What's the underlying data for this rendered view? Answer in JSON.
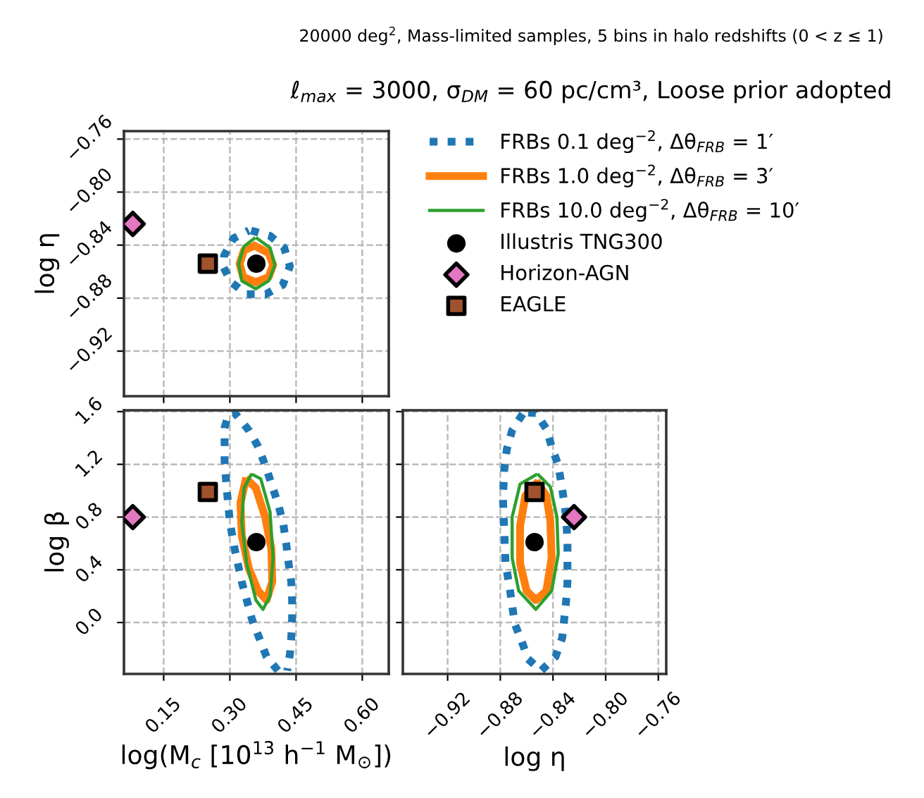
{
  "chart_data": [
    {
      "type": "line",
      "subtitle": "20000 deg$^{2}$, Mass-limited samples, 5 bins in halo redshifts (0 < z ≤ 1)",
      "title": "ℓ$_{max}$ = 3000, σ$_{DM}$ = 60 pc/cm³, Loose prior adopted",
      "ylabel": "log η",
      "xlim": [
        0.06,
        0.66
      ],
      "ylim": [
        -0.954,
        -0.754
      ],
      "xticks": [
        {
          "value": 0.15,
          "label": null
        },
        {
          "value": 0.3,
          "label": null
        },
        {
          "value": 0.45,
          "label": null
        },
        {
          "value": 0.6,
          "label": null
        }
      ],
      "yticks": [
        {
          "value": -0.92,
          "label": "−0.92"
        },
        {
          "value": -0.88,
          "label": "−0.88"
        },
        {
          "value": -0.84,
          "label": "−0.84"
        },
        {
          "value": -0.8,
          "label": "−0.80"
        },
        {
          "value": -0.76,
          "label": "−0.76"
        }
      ],
      "tick_labels": "y",
      "grid": true,
      "legend": "right",
      "series": [
        {
          "name": "FRBs 0.1 deg$^{−2}$, Δθ$_{FRB}$ = 1′",
          "color": "#1f77b4",
          "line_style": "dotted",
          "x": [
            0.348,
            0.391,
            0.423,
            0.436,
            0.42,
            0.382,
            0.338,
            0.303,
            0.286,
            0.287,
            0.308,
            0.343
          ],
          "values": [
            -0.829,
            -0.833,
            -0.842,
            -0.856,
            -0.87,
            -0.877,
            -0.877,
            -0.868,
            -0.857,
            -0.848,
            -0.835,
            -0.829
          ]
        },
        {
          "name": "FRBs 1.0 deg$^{−2}$, Δθ$_{FRB}$ = 3′",
          "color": "#ff7f0e",
          "line_style": "solid",
          "x": [
            0.359,
            0.388,
            0.398,
            0.388,
            0.359,
            0.33,
            0.322,
            0.332,
            0.352
          ],
          "values": [
            -0.841,
            -0.846,
            -0.855,
            -0.864,
            -0.868,
            -0.864,
            -0.854,
            -0.844,
            -0.841
          ]
        },
        {
          "name": "FRBs 10.0 deg$^{−2}$, Δθ$_{FRB}$ = 10′",
          "color": "#2ca02c",
          "line_style": "solid",
          "x": [
            0.362,
            0.391,
            0.402,
            0.388,
            0.359,
            0.327,
            0.32,
            0.332,
            0.355
          ],
          "values": [
            -0.835,
            -0.842,
            -0.855,
            -0.867,
            -0.873,
            -0.867,
            -0.854,
            -0.841,
            -0.835
          ]
        },
        {
          "name": "Illustris TNG300",
          "type": "scatter",
          "marker": "circle",
          "color": "#000000",
          "x": [
            0.36
          ],
          "values": [
            -0.854
          ]
        },
        {
          "name": "Horizon-AGN",
          "type": "scatter",
          "marker": "diamond",
          "color": "#e377c2",
          "x": [
            0.08
          ],
          "values": [
            -0.824
          ]
        },
        {
          "name": "EAGLE",
          "type": "scatter",
          "marker": "square",
          "color": "#a0522d",
          "x": [
            0.25
          ],
          "values": [
            -0.854
          ]
        }
      ]
    },
    {
      "type": "line",
      "xlabel": "log(M$_{c}$ [10$^{13}$ h$^{−1}$ M$_{⊙}$])",
      "ylabel": "log β",
      "xlim": [
        0.06,
        0.66
      ],
      "ylim": [
        -0.39,
        1.61
      ],
      "xticks": [
        {
          "value": 0.15,
          "label": "0.15"
        },
        {
          "value": 0.3,
          "label": "0.30"
        },
        {
          "value": 0.45,
          "label": "0.45"
        },
        {
          "value": 0.6,
          "label": "0.60"
        }
      ],
      "yticks": [
        {
          "value": 0.0,
          "label": "0.0"
        },
        {
          "value": 0.4,
          "label": "0.4"
        },
        {
          "value": 0.8,
          "label": "0.8"
        },
        {
          "value": 1.2,
          "label": "1.2"
        },
        {
          "value": 1.6,
          "label": "1.6"
        }
      ],
      "grid": true,
      "series": [
        {
          "color": "#1f77b4",
          "line_style": "dotted",
          "x": [
            0.409,
            0.383,
            0.35,
            0.327,
            0.311,
            0.3,
            0.293,
            0.288,
            0.288,
            0.297,
            0.311,
            0.343,
            0.364,
            0.382,
            0.396,
            0.41,
            0.421,
            0.428,
            0.433,
            0.439,
            0.441,
            0.441,
            0.439,
            0.436,
            0.43
          ],
          "values": [
            -0.365,
            -0.259,
            0.025,
            0.308,
            0.556,
            0.761,
            1.009,
            1.221,
            1.476,
            1.58,
            1.589,
            1.458,
            1.335,
            1.175,
            1.034,
            0.892,
            0.75,
            0.591,
            0.45,
            0.308,
            0.166,
            0.025,
            -0.117,
            -0.241,
            -0.365
          ]
        },
        {
          "color": "#ff7f0e",
          "line_style": "solid",
          "x": [
            0.335,
            0.324,
            0.327,
            0.343,
            0.364,
            0.383,
            0.396,
            0.394,
            0.38,
            0.359,
            0.342
          ],
          "values": [
            1.07,
            0.91,
            0.66,
            0.41,
            0.24,
            0.17,
            0.31,
            0.56,
            0.8,
            1.02,
            1.075
          ]
        },
        {
          "color": "#2ca02c",
          "line_style": "solid",
          "x": [
            0.348,
            0.332,
            0.327,
            0.338,
            0.359,
            0.375,
            0.391,
            0.398,
            0.391,
            0.37,
            0.353
          ],
          "values": [
            1.12,
            1.02,
            0.76,
            0.45,
            0.17,
            0.1,
            0.2,
            0.49,
            0.84,
            1.09,
            1.12
          ]
        },
        {
          "type": "scatter",
          "marker": "circle",
          "color": "#000000",
          "x": [
            0.36
          ],
          "values": [
            0.61
          ]
        },
        {
          "type": "scatter",
          "marker": "diamond",
          "color": "#e377c2",
          "x": [
            0.08
          ],
          "values": [
            0.8
          ]
        },
        {
          "type": "scatter",
          "marker": "square",
          "color": "#a0522d",
          "x": [
            0.25
          ],
          "values": [
            0.99
          ]
        }
      ]
    },
    {
      "type": "line",
      "xlabel": "log η",
      "xlim": [
        -0.954,
        -0.754
      ],
      "ylim": [
        -0.39,
        1.61
      ],
      "xticks": [
        {
          "value": -0.92,
          "label": "−0.92"
        },
        {
          "value": -0.88,
          "label": "−0.88"
        },
        {
          "value": -0.84,
          "label": "−0.84"
        },
        {
          "value": -0.8,
          "label": "−0.80"
        },
        {
          "value": -0.76,
          "label": "−0.76"
        }
      ],
      "yticks": [
        {
          "value": 0.0,
          "label": null
        },
        {
          "value": 0.4,
          "label": null
        },
        {
          "value": 0.8,
          "label": null
        },
        {
          "value": 1.2,
          "label": null
        },
        {
          "value": 1.6,
          "label": null
        }
      ],
      "tick_labels": "x",
      "grid": true,
      "series": [
        {
          "color": "#1f77b4",
          "line_style": "dotted",
          "x": [
            -0.863,
            -0.871,
            -0.875,
            -0.877,
            -0.878,
            -0.877,
            -0.876,
            -0.873,
            -0.869,
            -0.864,
            -0.859,
            -0.849,
            -0.838,
            -0.833,
            -0.83,
            -0.829,
            -0.829,
            -0.829,
            -0.83,
            -0.833,
            -0.836,
            -0.841,
            -0.845,
            -0.853,
            -0.859
          ],
          "values": [
            1.582,
            1.458,
            1.317,
            1.158,
            0.945,
            0.697,
            0.45,
            0.272,
            -0.011,
            -0.135,
            -0.276,
            -0.365,
            -0.259,
            -0.117,
            0.166,
            0.308,
            0.467,
            0.609,
            0.804,
            1.016,
            1.193,
            1.335,
            1.469,
            1.589,
            1.593
          ]
        },
        {
          "color": "#ff7f0e",
          "line_style": "solid",
          "x": [
            -0.853,
            -0.861,
            -0.865,
            -0.865,
            -0.86,
            -0.853,
            -0.845,
            -0.841,
            -0.842,
            -0.845,
            -0.851
          ],
          "values": [
            1.05,
            0.96,
            0.73,
            0.45,
            0.24,
            0.17,
            0.24,
            0.49,
            0.77,
            0.96,
            1.05
          ]
        },
        {
          "color": "#2ca02c",
          "line_style": "solid",
          "x": [
            -0.853,
            -0.865,
            -0.871,
            -0.871,
            -0.866,
            -0.853,
            -0.841,
            -0.836,
            -0.837,
            -0.842,
            -0.851
          ],
          "values": [
            1.12,
            1.05,
            0.8,
            0.49,
            0.24,
            0.1,
            0.24,
            0.52,
            0.8,
            1.03,
            1.12
          ]
        },
        {
          "type": "scatter",
          "marker": "circle",
          "color": "#000000",
          "x": [
            -0.854
          ],
          "values": [
            0.61
          ]
        },
        {
          "type": "scatter",
          "marker": "diamond",
          "color": "#e377c2",
          "x": [
            -0.824
          ],
          "values": [
            0.8
          ]
        },
        {
          "type": "scatter",
          "marker": "square",
          "color": "#a0522d",
          "x": [
            -0.854
          ],
          "values": [
            0.99
          ]
        }
      ]
    }
  ]
}
